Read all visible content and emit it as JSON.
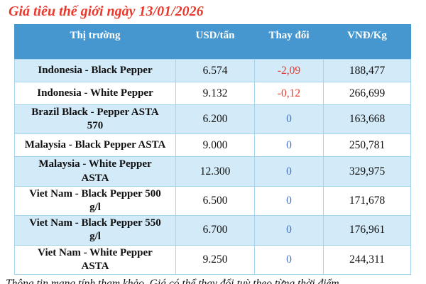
{
  "title": "Giá tiêu thế giới ngày 13/01/2026",
  "table": {
    "headers": {
      "market": "Thị trường",
      "usd": "USD/tấn",
      "change": "Thay đổi",
      "vnd": "VNĐ/Kg"
    },
    "rows": [
      {
        "market": "Indonesia - Black Pepper",
        "usd": "6.574",
        "change": "-2,09",
        "vnd": "188,477"
      },
      {
        "market": "Indonesia - White Pepper",
        "usd": "9.132",
        "change": "-0,12",
        "vnd": "266,699"
      },
      {
        "market": "Brazil Black - Pepper ASTA 570",
        "usd": "6.200",
        "change": "0",
        "vnd": "163,668"
      },
      {
        "market": "Malaysia - Black Pepper ASTA",
        "usd": "9.000",
        "change": "0",
        "vnd": "250,781"
      },
      {
        "market": "Malaysia - White Pepper ASTA",
        "usd": "12.300",
        "change": "0",
        "vnd": "329,975"
      },
      {
        "market": "Viet Nam - Black Pepper 500 g/l",
        "usd": "6.500",
        "change": "0",
        "vnd": "171,678"
      },
      {
        "market": "Viet Nam - Black Pepper 550 g/l",
        "usd": "6.700",
        "change": "0",
        "vnd": "176,961"
      },
      {
        "market": "Viet Nam - White Pepper ASTA",
        "usd": "9.250",
        "change": "0",
        "vnd": "244,311"
      }
    ]
  },
  "footer": {
    "note": "Thông tin mang tính tham khảo. Giá có thể thay đổi tuỳ theo từng thời điểm"
  },
  "colors": {
    "title_red": "#e8392c",
    "header_bg": "#4697cf",
    "header_text": "#ffffff",
    "row_alt_bg": "#d3eaf8",
    "border": "#a6d4ec",
    "change_negative": "#e8392c",
    "change_zero": "#4472c4",
    "body_text": "#111111"
  }
}
